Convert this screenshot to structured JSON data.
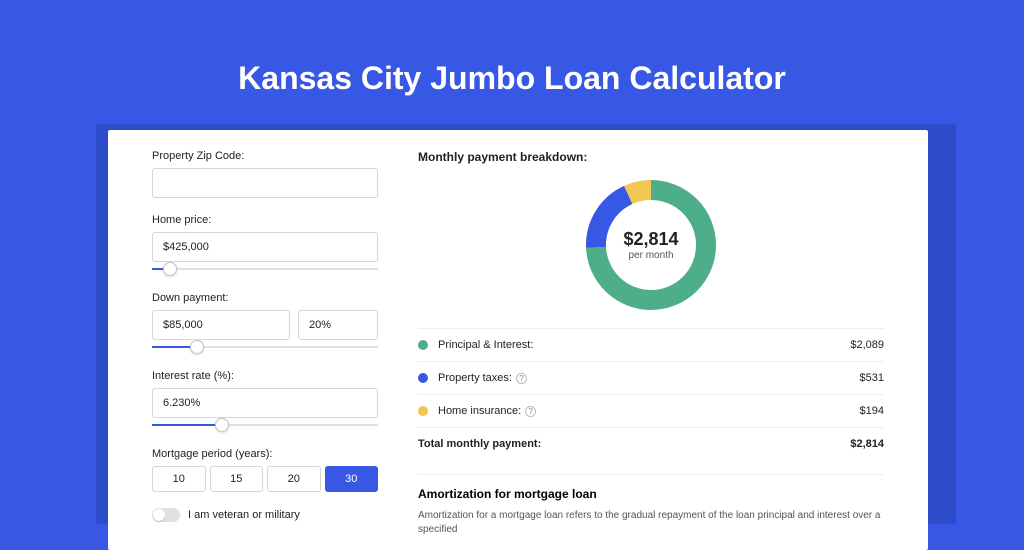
{
  "colors": {
    "page_bg": "#3757e5",
    "card_shadow": "#2e4bca",
    "accent": "#3757e5",
    "text": "#222222",
    "muted": "#555555",
    "border": "#d6d6d6"
  },
  "page": {
    "title": "Kansas City Jumbo Loan Calculator"
  },
  "form": {
    "zip": {
      "label": "Property Zip Code:",
      "value": ""
    },
    "home_price": {
      "label": "Home price:",
      "value": "$425,000",
      "slider_percent": 8
    },
    "down_payment": {
      "label": "Down payment:",
      "amount": "$85,000",
      "percent_text": "20%",
      "slider_percent": 20
    },
    "interest_rate": {
      "label": "Interest rate (%):",
      "value": "6.230%",
      "slider_percent": 31
    },
    "period": {
      "label": "Mortgage period (years):",
      "options": [
        "10",
        "15",
        "20",
        "30"
      ],
      "selected_index": 3
    },
    "veteran": {
      "label": "I am veteran or military",
      "checked": false
    }
  },
  "breakdown": {
    "title": "Monthly payment breakdown:",
    "center_amount": "$2,814",
    "center_sub": "per month",
    "donut": {
      "type": "donut",
      "segments": [
        {
          "label": "principal_interest",
          "value": 2089,
          "color": "#4eae8a"
        },
        {
          "label": "property_taxes",
          "value": 531,
          "color": "#3757e5"
        },
        {
          "label": "home_insurance",
          "value": 194,
          "color": "#f1c651"
        }
      ],
      "stroke_width": 20,
      "radius": 55,
      "background_color": "#ffffff"
    },
    "rows": [
      {
        "label": "Principal & Interest:",
        "value": "$2,089",
        "dot_color": "#4eae8a",
        "help": false
      },
      {
        "label": "Property taxes:",
        "value": "$531",
        "dot_color": "#3757e5",
        "help": true
      },
      {
        "label": "Home insurance:",
        "value": "$194",
        "dot_color": "#f1c651",
        "help": true
      }
    ],
    "total": {
      "label": "Total monthly payment:",
      "value": "$2,814"
    }
  },
  "amortization": {
    "title": "Amortization for mortgage loan",
    "text": "Amortization for a mortgage loan refers to the gradual repayment of the loan principal and interest over a specified"
  }
}
